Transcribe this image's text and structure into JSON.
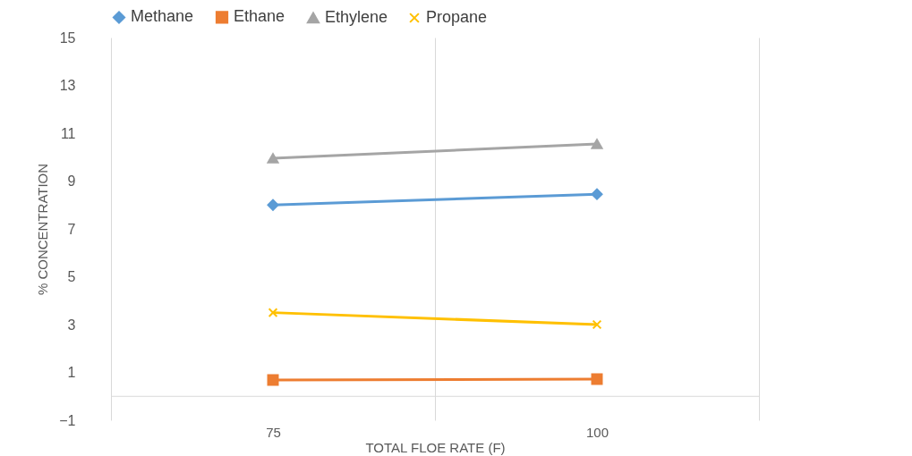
{
  "chart_data": {
    "type": "line",
    "xlabel": "TOTAL FLOE RATE (F)",
    "ylabel": "% CONCENTRATION",
    "categories": [
      "75",
      "100"
    ],
    "series": [
      {
        "name": "Methane",
        "color": "#5b9bd5",
        "marker": "diamond",
        "values": [
          8.0,
          8.45
        ]
      },
      {
        "name": "Ethane",
        "color": "#ed7d31",
        "marker": "square",
        "values": [
          0.68,
          0.72
        ]
      },
      {
        "name": "Ethylene",
        "color": "#a5a5a5",
        "marker": "triangle",
        "values": [
          9.95,
          10.55
        ]
      },
      {
        "name": "Propane",
        "color": "#ffc000",
        "marker": "cross",
        "values": [
          3.5,
          3.0
        ]
      }
    ],
    "ylim": [
      -1,
      15
    ],
    "yticks": [
      -1,
      1,
      3,
      5,
      7,
      9,
      11,
      13,
      15
    ],
    "grid": "x",
    "legend": "top"
  }
}
